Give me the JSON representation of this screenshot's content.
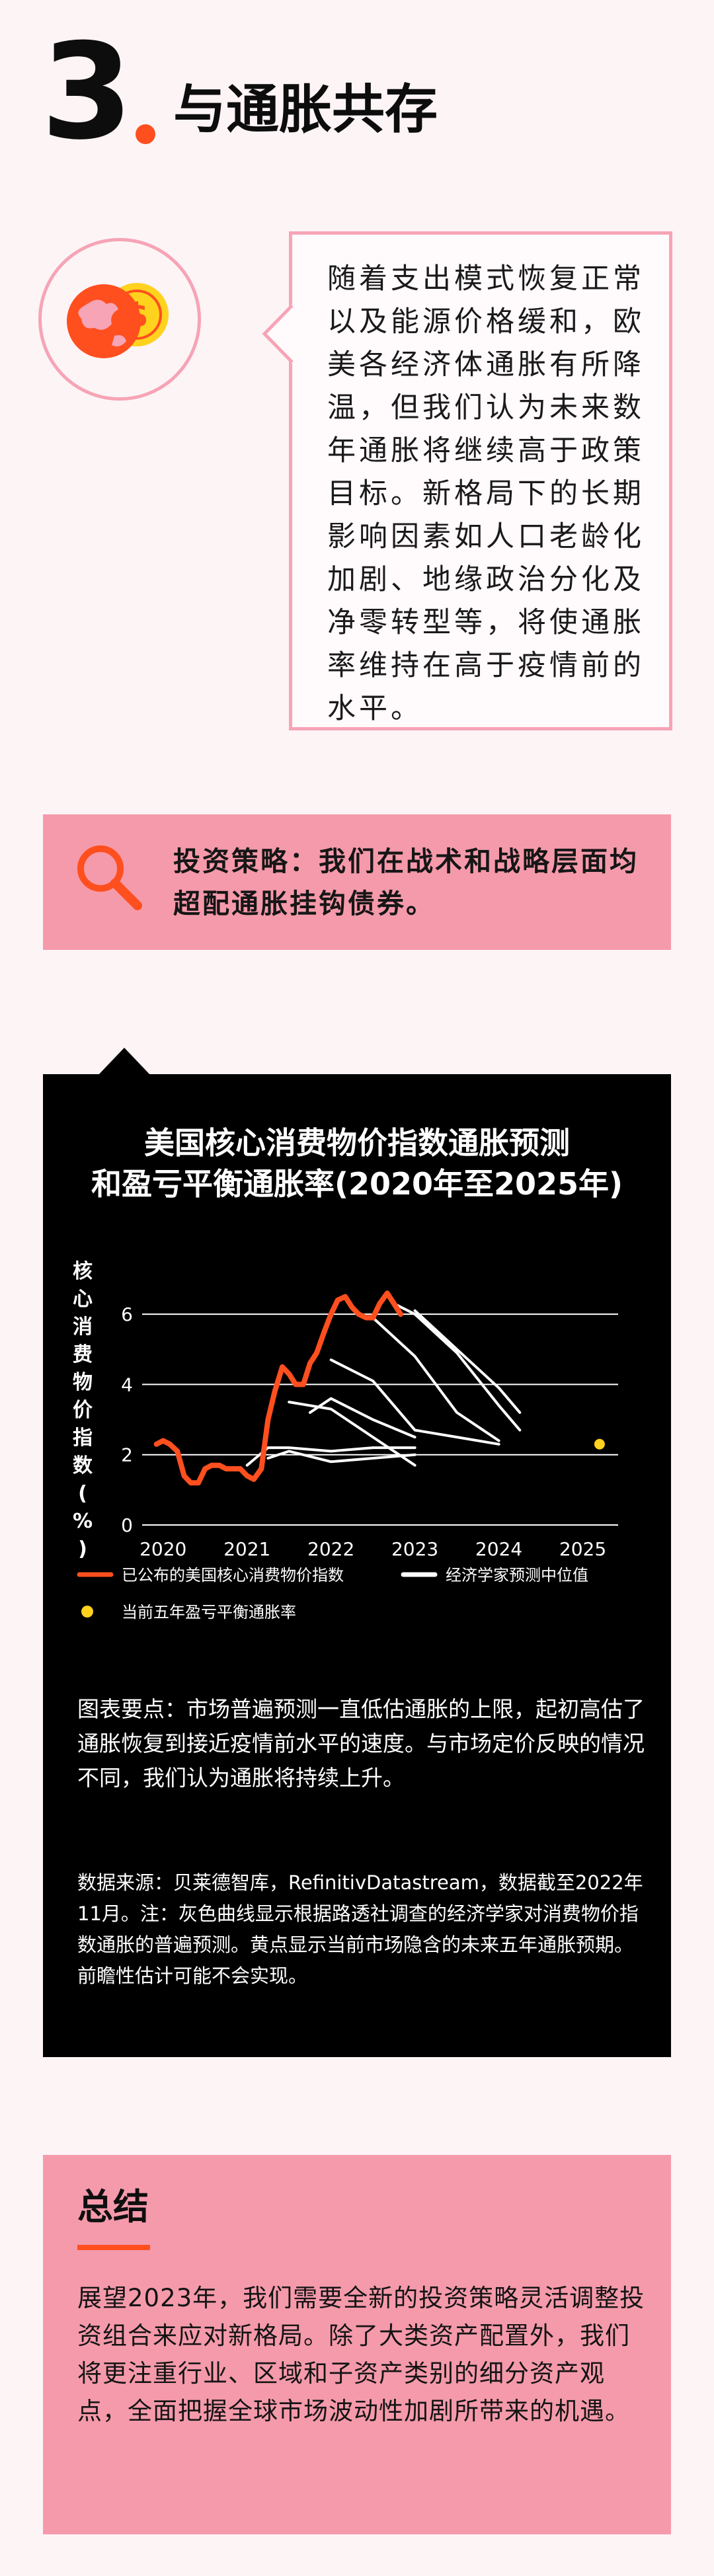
{
  "section": {
    "number": "3",
    "title": "与通胀共存",
    "accent_color": "#ff4f1f"
  },
  "intro": {
    "icon": "coin-icon",
    "text": "随着支出模式恢复正常以及能源价格缓和，欧美各经济体通胀有所降温，但我们认为未来数年通胀将继续高于政策目标。新格局下的长期影响因素如人口老龄化加剧、地缘政治分化及净零转型等，将使通胀率维持在高于疫情前的水平。"
  },
  "strategy": {
    "icon": "search-icon",
    "text": "投资策略：我们在战术和战略层面均超配通胀挂钩债券。"
  },
  "chart_data": {
    "type": "line",
    "title_line1": "美国核心消费物价指数通胀预测",
    "title_line2": "和盈亏平衡通胀率(2020年至2025年)",
    "ylabel": "核心消费物价指数(%)",
    "xlabel": "",
    "x_ticks": [
      "2020",
      "2021",
      "2022",
      "2023",
      "2024",
      "2025"
    ],
    "y_ticks": [
      "0",
      "2",
      "4",
      "6"
    ],
    "xlim": [
      2019.75,
      2025.5
    ],
    "ylim": [
      0,
      7
    ],
    "grid": true,
    "colors": {
      "actual": "#ff4f1f",
      "forecast": "#ffffff",
      "breakeven": "#ffd21e"
    },
    "series": [
      {
        "name": "已公布的美国核心消费物价指数",
        "kind": "actual",
        "points": [
          [
            2019.92,
            2.3
          ],
          [
            2020.0,
            2.4
          ],
          [
            2020.08,
            2.3
          ],
          [
            2020.17,
            2.1
          ],
          [
            2020.25,
            1.4
          ],
          [
            2020.33,
            1.2
          ],
          [
            2020.42,
            1.2
          ],
          [
            2020.5,
            1.6
          ],
          [
            2020.58,
            1.7
          ],
          [
            2020.67,
            1.7
          ],
          [
            2020.75,
            1.6
          ],
          [
            2020.83,
            1.6
          ],
          [
            2020.92,
            1.6
          ],
          [
            2021.0,
            1.4
          ],
          [
            2021.08,
            1.3
          ],
          [
            2021.17,
            1.6
          ],
          [
            2021.25,
            3.0
          ],
          [
            2021.33,
            3.8
          ],
          [
            2021.42,
            4.5
          ],
          [
            2021.5,
            4.3
          ],
          [
            2021.58,
            4.0
          ],
          [
            2021.67,
            4.0
          ],
          [
            2021.75,
            4.6
          ],
          [
            2021.83,
            4.9
          ],
          [
            2021.92,
            5.5
          ],
          [
            2022.0,
            6.0
          ],
          [
            2022.08,
            6.4
          ],
          [
            2022.17,
            6.5
          ],
          [
            2022.25,
            6.2
          ],
          [
            2022.33,
            6.0
          ],
          [
            2022.42,
            5.9
          ],
          [
            2022.5,
            5.9
          ],
          [
            2022.58,
            6.3
          ],
          [
            2022.67,
            6.6
          ],
          [
            2022.75,
            6.3
          ],
          [
            2022.83,
            6.0
          ]
        ]
      },
      {
        "kind": "forecast",
        "points": [
          [
            2021.0,
            1.7
          ],
          [
            2021.25,
            2.2
          ],
          [
            2021.5,
            2.2
          ],
          [
            2022.0,
            2.1
          ],
          [
            2022.5,
            2.2
          ],
          [
            2023.0,
            2.2
          ]
        ]
      },
      {
        "kind": "forecast",
        "points": [
          [
            2021.25,
            1.9
          ],
          [
            2021.5,
            2.1
          ],
          [
            2022.0,
            1.8
          ],
          [
            2022.5,
            1.9
          ],
          [
            2023.0,
            2.0
          ]
        ]
      },
      {
        "kind": "forecast",
        "points": [
          [
            2021.5,
            3.5
          ],
          [
            2021.75,
            3.4
          ],
          [
            2022.0,
            3.3
          ],
          [
            2022.5,
            2.5
          ],
          [
            2023.0,
            1.7
          ]
        ]
      },
      {
        "kind": "forecast",
        "points": [
          [
            2021.75,
            3.2
          ],
          [
            2022.0,
            3.6
          ],
          [
            2022.5,
            3.0
          ],
          [
            2023.0,
            2.5
          ]
        ]
      },
      {
        "kind": "forecast",
        "points": [
          [
            2022.0,
            4.7
          ],
          [
            2022.5,
            4.1
          ],
          [
            2023.0,
            2.7
          ],
          [
            2023.5,
            2.5
          ],
          [
            2024.0,
            2.3
          ]
        ]
      },
      {
        "kind": "forecast",
        "points": [
          [
            2022.5,
            5.9
          ],
          [
            2023.0,
            4.8
          ],
          [
            2023.5,
            3.2
          ],
          [
            2024.0,
            2.4
          ]
        ]
      },
      {
        "kind": "forecast",
        "points": [
          [
            2022.75,
            6.3
          ],
          [
            2023.0,
            6.0
          ],
          [
            2023.5,
            4.9
          ],
          [
            2024.0,
            3.4
          ],
          [
            2024.25,
            2.7
          ]
        ]
      },
      {
        "kind": "forecast",
        "points": [
          [
            2023.0,
            6.1
          ],
          [
            2023.5,
            5.0
          ],
          [
            2024.0,
            3.9
          ],
          [
            2024.25,
            3.2
          ]
        ]
      }
    ],
    "breakeven": {
      "x": 2025.2,
      "y": 2.3
    },
    "legend": [
      {
        "label": "已公布的美国核心消费物价指数",
        "kind": "actual"
      },
      {
        "label": "经济学家预测中位值",
        "kind": "forecast"
      },
      {
        "label": "当前五年盈亏平衡通胀率",
        "kind": "breakeven"
      }
    ],
    "legend_placement": "bottom"
  },
  "chart_notes": {
    "caption": "图表要点：市场普遍预测一直低估通胀的上限，起初高估了通胀恢复到接近疫情前水平的速度。与市场定价反映的情况不同，我们认为通胀将持续上升。",
    "source": "数据来源：贝莱德智库，RefinitivDatastream，数据截至2022年11月。注：灰色曲线显示根据路透社调查的经济学家对消费物价指数通胀的普遍预测。黄点显示当前市场隐含的未来五年通胀预期。前瞻性估计可能不会实现。"
  },
  "summary": {
    "title": "总结",
    "text": "展望2023年，我们需要全新的投资策略灵活调整投资组合来应对新格局。除了大类资产配置外，我们将更注重行业、区域和子资产类别的细分资产观点，全面把握全球市场波动性加剧所带来的机遇。"
  }
}
